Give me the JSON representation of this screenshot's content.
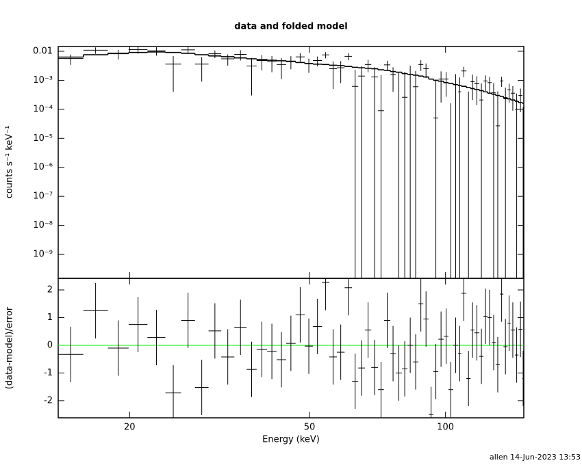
{
  "chart_data": [
    {
      "type": "spectrum",
      "title": "data and folded model",
      "ylabel": "counts s⁻¹ keV⁻¹",
      "xlog": true,
      "ylog": true,
      "xlim": [
        13.9,
        149.0
      ],
      "ylim": [
        1.5e-10,
        0.0146
      ],
      "yticks": [
        0.01,
        {
          "value": 0.001,
          "label": "10⁻³"
        },
        {
          "value": 0.0001,
          "label": "10⁻⁴"
        },
        {
          "value": 1e-05,
          "label": "10⁻⁵"
        },
        {
          "value": 1e-06,
          "label": "10⁻⁶"
        },
        {
          "value": 1e-07,
          "label": "10⁻⁷"
        },
        {
          "value": 1e-08,
          "label": "10⁻⁸"
        },
        {
          "value": 1e-09,
          "label": "10⁻⁹"
        }
      ],
      "color": "#000000",
      "model_color": "#000000",
      "bin_edges": [
        13.9,
        15.8,
        17.9,
        19.9,
        21.9,
        24.0,
        26.0,
        27.9,
        29.9,
        31.9,
        34.1,
        36.3,
        38.2,
        40.3,
        42.3,
        44.4,
        46.6,
        48.8,
        50.9,
        53.3,
        55.3,
        57.5,
        59.8,
        62.1,
        64.1,
        66.3,
        68.5,
        70.9,
        73.1,
        75.5,
        77.6,
        80.1,
        82.4,
        84.7,
        87.1,
        89.3,
        91.8,
        94.0,
        96.4,
        99.1,
        101.5,
        104.0,
        106.6,
        108.4,
        111.2,
        113.6,
        115.9,
        118.8,
        121.3,
        123.9,
        126.5,
        129.1,
        131.9,
        134.3,
        137.1,
        139.4,
        142.4,
        145.0,
        148.0,
        149.0
      ],
      "values": [
        0.0056,
        0.0109,
        0.0082,
        0.0115,
        0.0104,
        0.0036,
        0.0112,
        0.0036,
        0.0082,
        0.0055,
        0.0078,
        0.0031,
        0.0048,
        0.0044,
        0.0035,
        0.0046,
        0.0064,
        0.0037,
        0.0048,
        0.0075,
        0.0025,
        0.0027,
        0.0067,
        0.00062,
        0.0014,
        0.0035,
        0.0013,
        9e-05,
        0.0034,
        0.0016,
        0,
        0.00026,
        0.0016,
        0.0006,
        0.0035,
        0.0025,
        -0.0017,
        5e-05,
        0.0011,
        0.0011,
        -0.00084,
        0.00071,
        0.0004,
        0.0021,
        -0.00032,
        0.00089,
        0.00076,
        0.00021,
        0.00095,
        0.00083,
        0.00037,
        2.7e-05,
        0.00095,
        0.00023,
        0.00047,
        0.00036,
        0.0001,
        0.0003,
        -9e-05
      ],
      "errors": [
        0.0022,
        0.0027,
        0.003,
        0.0032,
        0.0033,
        0.0032,
        0.003,
        0.0027,
        0.0024,
        0.0023,
        0.003,
        0.0028,
        0.0026,
        0.0025,
        0.0024,
        0.0022,
        0.0021,
        0.0019,
        0.0018,
        0.0018,
        0.002,
        0.0019,
        0.0018,
        0.0017,
        0.0016,
        0.0016,
        0.0015,
        0.0014,
        0.0013,
        0.0012,
        0.0019,
        0.0017,
        0.0016,
        0.0015,
        0.0014,
        0.0013,
        0.0011,
        0.001,
        0.00093,
        0.00083,
        0.001,
        0.00092,
        0.00086,
        0.00081,
        0.00073,
        0.00068,
        0.00062,
        0.00057,
        0.00052,
        0.00047,
        0.00043,
        0.00039,
        0.00036,
        0.00033,
        0.0003,
        0.00027,
        0.00025,
        0.00022,
        0.00021
      ],
      "model": [
        0.0063,
        0.0076,
        0.0085,
        0.0091,
        0.0095,
        0.0091,
        0.0085,
        0.0076,
        0.0069,
        0.0065,
        0.0059,
        0.0055,
        0.0052,
        0.0049,
        0.0047,
        0.0044,
        0.0041,
        0.0038,
        0.0036,
        0.0035,
        0.0033,
        0.0032,
        0.003,
        0.0028,
        0.0027,
        0.0026,
        0.0025,
        0.0023,
        0.0022,
        0.002,
        0.0019,
        0.0017,
        0.0016,
        0.0015,
        0.0014,
        0.0013,
        0.0011,
        0.001,
        0.00093,
        0.00083,
        0.00078,
        0.00071,
        0.00066,
        0.00062,
        0.00056,
        0.00052,
        0.00048,
        0.00044,
        0.0004,
        0.00036,
        0.00033,
        0.0003,
        0.00028,
        0.00025,
        0.00023,
        0.00021,
        0.00019,
        0.00017,
        0.00016
      ]
    },
    {
      "type": "residual",
      "ylabel": "(data-model)/error",
      "xlabel": "Energy (keV)",
      "xlog": true,
      "xlim": [
        13.9,
        149.0
      ],
      "xticks": [
        20,
        50,
        100
      ],
      "ylim": [
        -2.62,
        2.42
      ],
      "yticks": [
        -2,
        -1,
        0,
        1,
        2
      ],
      "color": "#000000",
      "reference_line": 0,
      "reference_color": "#00ee00",
      "error": 1,
      "values": [
        -0.33,
        1.25,
        -0.1,
        0.75,
        0.28,
        -1.72,
        0.9,
        -1.52,
        0.52,
        -0.42,
        0.65,
        -0.87,
        -0.15,
        -0.22,
        -0.52,
        0.07,
        1.1,
        -0.03,
        0.68,
        2.27,
        -0.42,
        -0.25,
        2.08,
        -1.3,
        -0.82,
        0.55,
        -0.8,
        -1.6,
        0.9,
        -0.3,
        -1.0,
        -0.85,
        0,
        -0.6,
        1.5,
        0.95,
        -2.5,
        -0.95,
        0.22,
        0.33,
        -1.6,
        0,
        -0.3,
        1.88,
        -1.2,
        0.55,
        0.45,
        -0.4,
        1.05,
        1.0,
        0.1,
        -0.7,
        1.85,
        -0.05,
        0.8,
        0.55,
        -0.35,
        0.58,
        -1.2
      ]
    }
  ],
  "footer": "allen 14-Jun-2023 13:53"
}
